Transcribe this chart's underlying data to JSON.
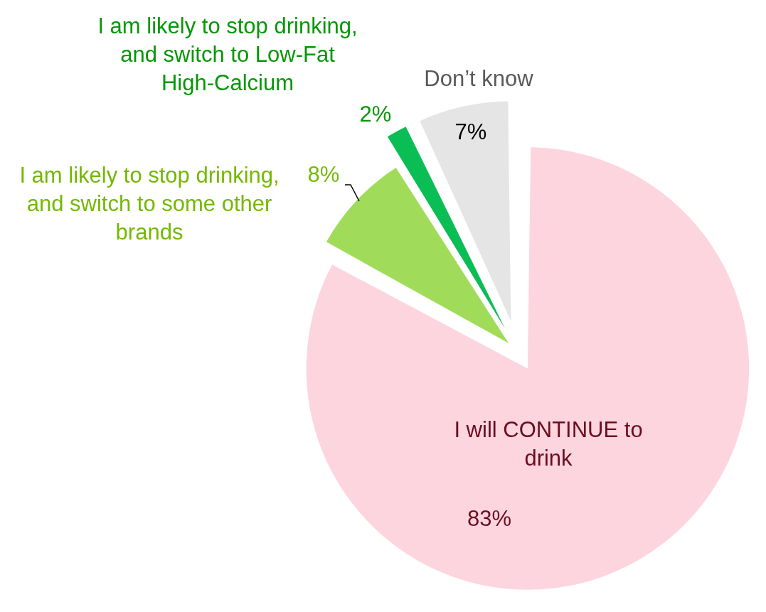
{
  "chart_data": {
    "type": "pie",
    "categories": [
      "I will CONTINUE to drink",
      "I am likely to stop drinking, and switch to some other brands",
      "I am likely to stop drinking, and switch to Low-Fat High-Calcium",
      "Don’t know"
    ],
    "values": [
      83,
      8,
      2,
      7
    ],
    "colors": [
      "#fdd5df",
      "#a0dc5a",
      "#0abd55",
      "#e5e5e5"
    ],
    "value_labels": [
      "83%",
      "8%",
      "2%",
      "7%"
    ]
  }
}
